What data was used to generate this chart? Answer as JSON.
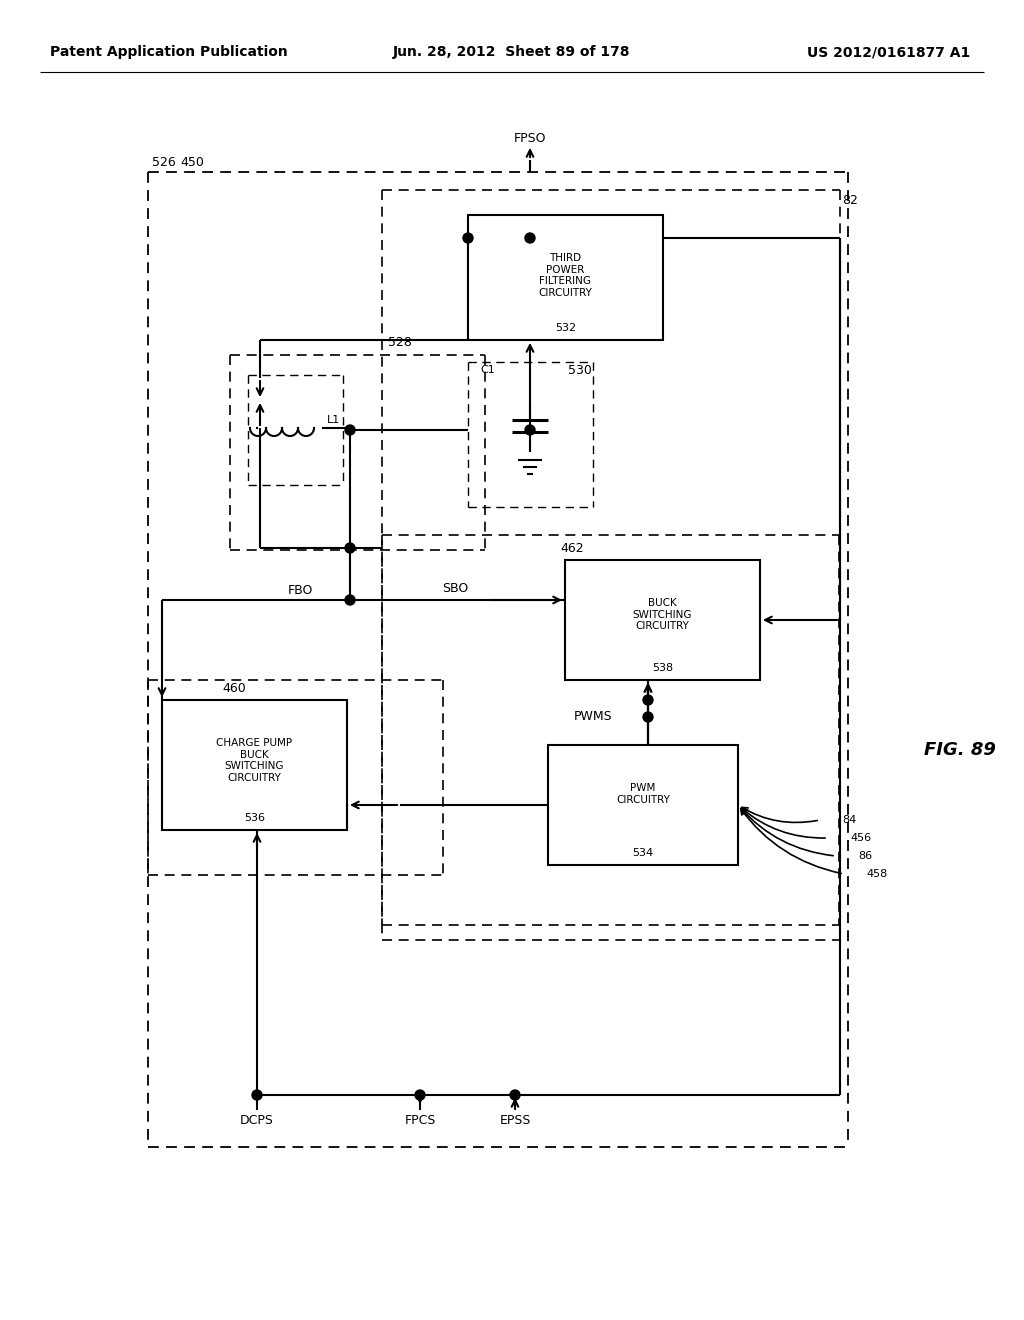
{
  "header_left": "Patent Application Publication",
  "header_mid": "Jun. 28, 2012  Sheet 89 of 178",
  "header_right": "US 2012/0161877 A1",
  "fig_label": "FIG. 89",
  "bg_color": "#ffffff",
  "label_526": "526",
  "label_450": "450",
  "label_528": "528",
  "label_82": "82",
  "label_532": "532",
  "label_530": "530",
  "label_460": "460",
  "label_462": "462",
  "label_538": "538",
  "label_534": "534",
  "label_536": "536",
  "label_84": "84",
  "label_86": "86",
  "label_456": "456",
  "label_458": "458",
  "signal_FPSO": "FPSO",
  "signal_FBO": "FBO",
  "signal_SBO": "SBO",
  "signal_PWMS": "PWMS",
  "signal_DCPS": "DCPS",
  "signal_FPCS": "FPCS",
  "signal_EPSS": "EPSS",
  "box_third_power": "THIRD\nPOWER\nFILTERING\nCIRCUITRY",
  "box_buck": "BUCK\nSWITCHING\nCIRCUITRY",
  "box_pwm": "PWM\nCIRCUITRY",
  "box_charge_pump": "CHARGE PUMP\nBUCK\nSWITCHING\nCIRCUITRY",
  "inductor_label": "L1",
  "capacitor_label": "C1"
}
